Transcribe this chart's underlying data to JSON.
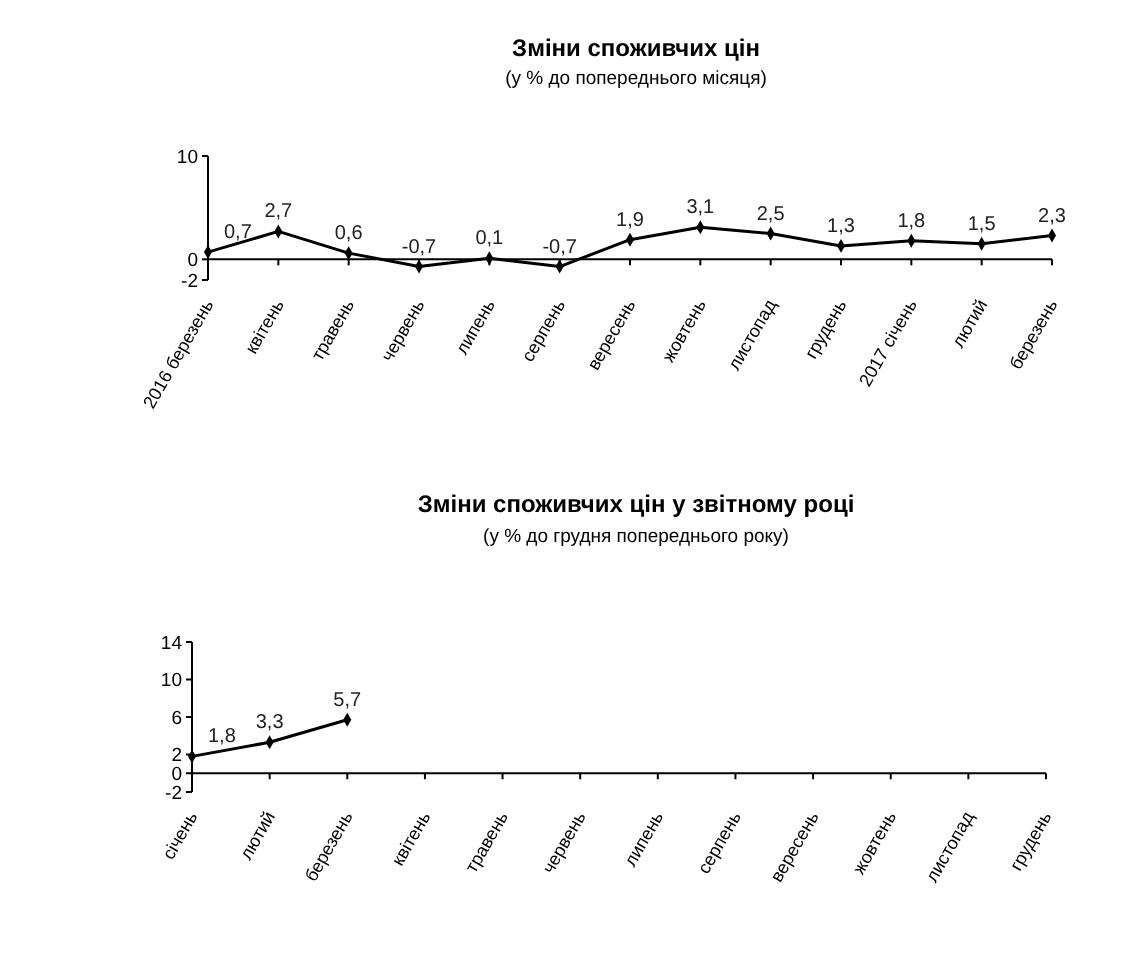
{
  "chart_data": [
    {
      "type": "line",
      "title": "Зміни споживчих цін",
      "subtitle": "(у % до попереднього місяця)",
      "categories": [
        "2016 березень",
        "квітень",
        "травень",
        "червень",
        "липень",
        "серпень",
        "вересень",
        "жовтень",
        "листопад",
        "грудень",
        "2017 січень",
        "лютий",
        "березень"
      ],
      "series": [
        {
          "color": "#000000",
          "values": [
            0.7,
            2.7,
            0.6,
            -0.7,
            0.1,
            -0.7,
            1.9,
            3.1,
            2.5,
            1.3,
            1.8,
            1.5,
            2.3
          ],
          "value_labels": [
            "0,7",
            "2,7",
            "0,6",
            "-0,7",
            "0,1",
            "-0,7",
            "1,9",
            "3,1",
            "2,5",
            "1,3",
            "1,8",
            "1,5",
            "2,3"
          ]
        }
      ],
      "ylim": [
        -2,
        10
      ],
      "yticks": [
        -2,
        0,
        10
      ],
      "marker": "diamond",
      "line_style": "solid"
    },
    {
      "type": "line",
      "title": "Зміни споживчих цін у звітному році",
      "subtitle": "(у % до грудня попереднього року)",
      "categories": [
        "січень",
        "лютий",
        "березень",
        "квітень",
        "травень",
        "червень",
        "липень",
        "серпень",
        "вересень",
        "жовтень",
        "листопад",
        "грудень"
      ],
      "series": [
        {
          "color": "#000000",
          "values": [
            1.8,
            3.3,
            5.7,
            null,
            null,
            null,
            null,
            null,
            null,
            null,
            null,
            null
          ],
          "value_labels": [
            "1,8",
            "3,3",
            "5,7",
            null,
            null,
            null,
            null,
            null,
            null,
            null,
            null,
            null
          ]
        }
      ],
      "ylim": [
        -2,
        14
      ],
      "yticks": [
        -2,
        0,
        2,
        6,
        10,
        14
      ],
      "marker": "diamond",
      "line_style": "solid"
    }
  ]
}
